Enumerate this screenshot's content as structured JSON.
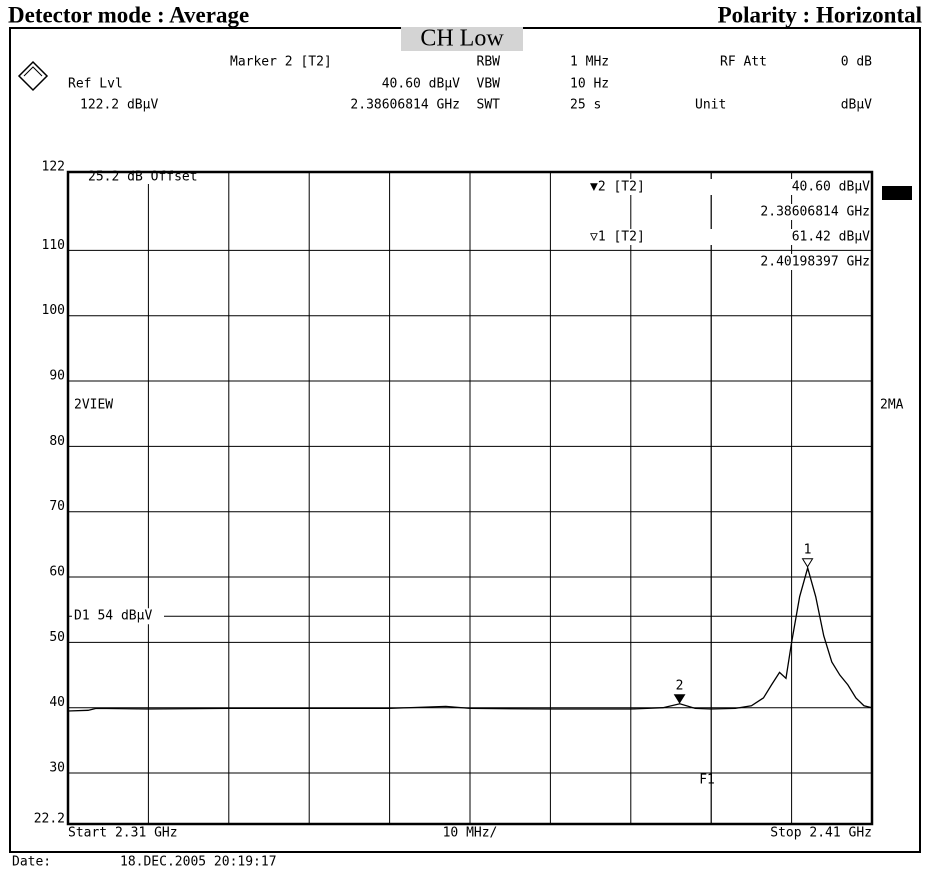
{
  "header": {
    "detector": "Detector mode : Average",
    "polarity": "Polarity : Horizontal",
    "channel": "CH Low"
  },
  "settings": {
    "marker": "Marker 2 [T2]",
    "ref_lvl_label": "Ref Lvl",
    "ref_lvl": "122.2 dBµV",
    "marker_level": "40.60 dBµV",
    "marker_freq": "2.38606814 GHz",
    "rbw_label": "RBW",
    "rbw": "1 MHz",
    "vbw_label": "VBW",
    "vbw": "10 Hz",
    "swt_label": "SWT",
    "swt": "25 s",
    "rf_att_label": "RF Att",
    "rf_att": "0 dB",
    "unit_label": "Unit",
    "unit": "dBµV"
  },
  "chart_data": {
    "type": "line",
    "x": [
      2.31,
      2.3125,
      2.3135,
      2.32,
      2.33,
      2.34,
      2.35,
      2.357,
      2.36,
      2.37,
      2.38,
      2.384,
      2.3861,
      2.388,
      2.39,
      2.393,
      2.395,
      2.3965,
      2.3975,
      2.3985,
      2.3993,
      2.4,
      2.401,
      2.402,
      2.403,
      2.404,
      2.405,
      2.406,
      2.407,
      2.408,
      2.409,
      2.41
    ],
    "values": [
      39.5,
      39.6,
      39.9,
      39.8,
      39.9,
      39.9,
      39.9,
      40.2,
      39.9,
      39.8,
      39.8,
      40.0,
      40.6,
      39.9,
      39.8,
      39.9,
      40.3,
      41.5,
      43.5,
      45.4,
      44.5,
      50,
      57,
      61.4,
      57,
      51,
      47,
      45,
      43.5,
      41.5,
      40.3,
      40
    ],
    "color": "#000000",
    "xlim": [
      2.31,
      2.41
    ],
    "xgrid": [
      2.32,
      2.33,
      2.34,
      2.35,
      2.36,
      2.37,
      2.38,
      2.39,
      2.4
    ],
    "ylim": [
      22.2,
      122
    ],
    "yticks": [
      22.2,
      30,
      40,
      50,
      60,
      70,
      80,
      90,
      100,
      110,
      122
    ],
    "grid": true,
    "offset_label": "25.2 dB Offset",
    "display_line": {
      "value": 54,
      "label": "D1 54 dBµV"
    },
    "f1": {
      "value": 2.39,
      "label": "F1"
    },
    "markers": [
      {
        "label": "1",
        "x": 2.40198397,
        "y": 61.42,
        "filled": false
      },
      {
        "label": "2",
        "x": 2.38606814,
        "y": 40.6,
        "filled": true
      }
    ],
    "readouts": [
      {
        "marker": "▼2 [T2]",
        "level": "40.60 dBµV",
        "freq": "2.38606814 GHz"
      },
      {
        "marker": "▽1 [T2]",
        "level": "61.42 dBµV",
        "freq": "2.40198397 GHz"
      }
    ],
    "left_label": "2VIEW",
    "right_label": "2MA",
    "start_label": "Start 2.31 GHz",
    "span_label": "10 MHz/",
    "stop_label": "Stop 2.41 GHz"
  },
  "footer": {
    "date_label": "Date:",
    "date": "18.DEC.2005  20:19:17"
  }
}
